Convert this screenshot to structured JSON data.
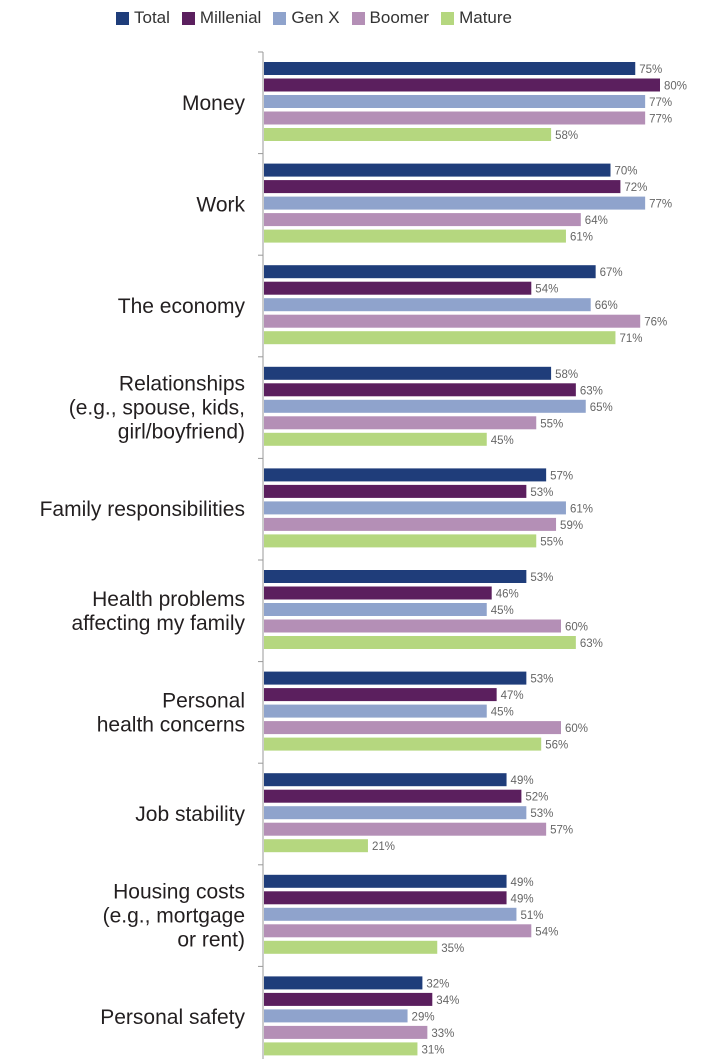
{
  "chart_data": {
    "type": "bar",
    "orientation": "horizontal",
    "xlim": [
      0,
      100
    ],
    "value_suffix": "%",
    "legend_placement": "top",
    "categories": [
      [
        "Money"
      ],
      [
        "Work"
      ],
      [
        "The economy"
      ],
      [
        "Relationships",
        "(e.g., spouse, kids,",
        "girl/boyfriend)"
      ],
      [
        "Family responsibilities"
      ],
      [
        "Health problems",
        "affecting my family"
      ],
      [
        "Personal",
        "health concerns"
      ],
      [
        "Job stability"
      ],
      [
        "Housing costs",
        "(e.g., mortgage",
        "or rent)"
      ],
      [
        "Personal safety"
      ]
    ],
    "series": [
      {
        "name": "Total",
        "color": "#1f3d7a",
        "values": [
          75,
          70,
          67,
          58,
          57,
          53,
          53,
          49,
          49,
          32
        ]
      },
      {
        "name": "Millenial",
        "color": "#5b1f5e",
        "values": [
          80,
          72,
          54,
          63,
          53,
          46,
          47,
          52,
          49,
          34
        ]
      },
      {
        "name": "Gen X",
        "color": "#8fa3cc",
        "values": [
          77,
          77,
          66,
          65,
          61,
          45,
          45,
          53,
          51,
          29
        ]
      },
      {
        "name": "Boomer",
        "color": "#b48fb6",
        "values": [
          77,
          64,
          76,
          55,
          59,
          60,
          60,
          57,
          54,
          33
        ]
      },
      {
        "name": "Mature",
        "color": "#b5d77f",
        "values": [
          58,
          61,
          71,
          45,
          55,
          63,
          56,
          21,
          35,
          31
        ]
      }
    ]
  }
}
